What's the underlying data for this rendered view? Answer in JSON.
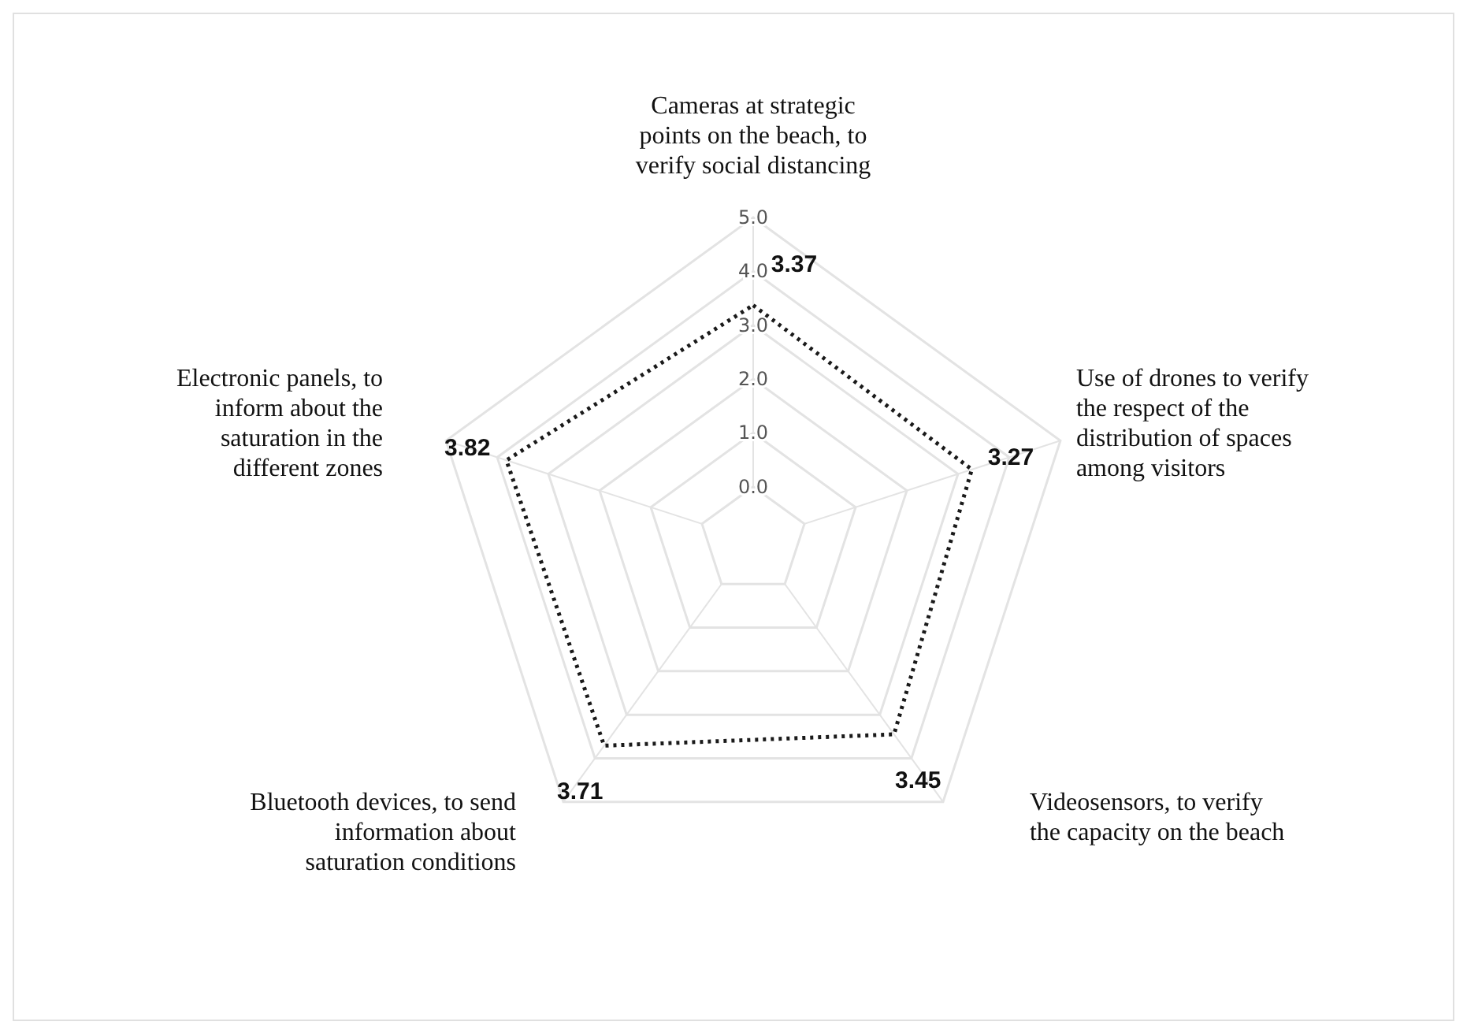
{
  "chart_data": {
    "type": "radar",
    "categories": [
      "Cameras at strategic points on the beach, to verify social distancing",
      "Use of drones to verify the respect of the distribution of spaces among visitors",
      "Videosensors, to verify the capacity on the beach",
      "Bluetooth devices, to send information about saturation conditions",
      "Electronic panels, to inform about the saturation in the different zones"
    ],
    "series": [
      {
        "color": "#1a1a1a",
        "values": [
          3.37,
          3.27,
          3.45,
          3.71,
          3.82
        ]
      }
    ],
    "ylim": [
      -1,
      5
    ],
    "yticks": [
      {
        "value": 0,
        "label": "0.0"
      },
      {
        "value": 1,
        "label": "1.0"
      },
      {
        "value": 2,
        "label": "2.0"
      },
      {
        "value": 3,
        "label": "3.0"
      },
      {
        "value": 4,
        "label": "4.0"
      },
      {
        "value": 5,
        "label": "5.0"
      }
    ],
    "grid": true,
    "data_labels": true,
    "line_style": "dotted",
    "marker": "none"
  }
}
